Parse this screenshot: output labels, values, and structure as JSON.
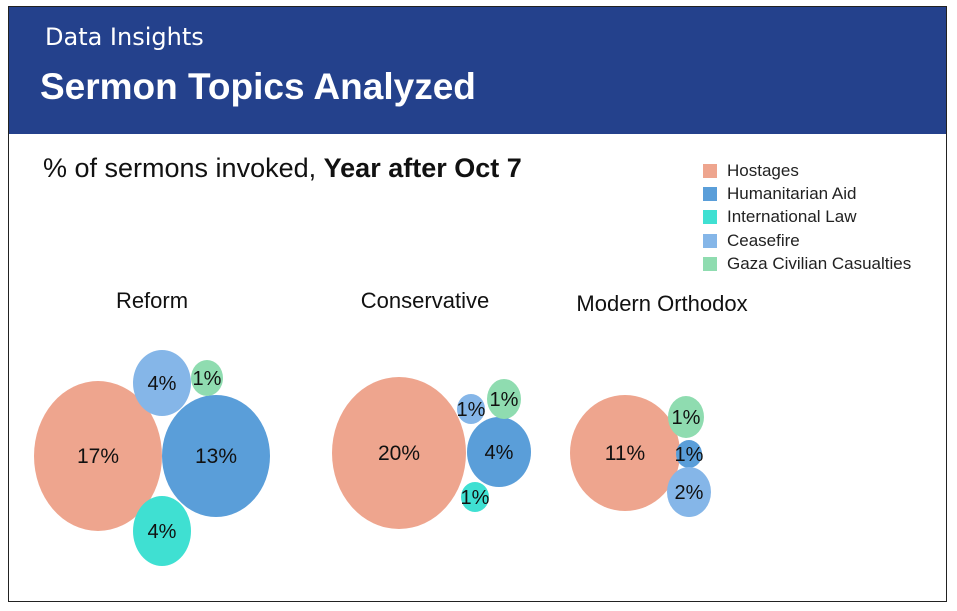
{
  "header": {
    "kicker": "Data Insights",
    "title": "Sermon Topics Analyzed"
  },
  "subtitle": {
    "prefix": "% of sermons invoked, ",
    "emphasis": "Year after Oct 7"
  },
  "chart_data": {
    "type": "bubble",
    "title": "% of sermons invoked, Year after Oct 7",
    "unit": "%",
    "legend_position": "top-right",
    "series": [
      {
        "name": "Hostages",
        "color": "#eea58e"
      },
      {
        "name": "Humanitarian Aid",
        "color": "#5a9ed9"
      },
      {
        "name": "International Law",
        "color": "#3fe0d2"
      },
      {
        "name": "Ceasefire",
        "color": "#85b6e8"
      },
      {
        "name": "Gaza Civilian Casualties",
        "color": "#8fdcb0"
      }
    ],
    "groups": [
      {
        "name": "Reform",
        "values": [
          {
            "topic": "Hostages",
            "value": 17,
            "label": "17%"
          },
          {
            "topic": "Humanitarian Aid",
            "value": 13,
            "label": "13%"
          },
          {
            "topic": "International Law",
            "value": 4,
            "label": "4%"
          },
          {
            "topic": "Ceasefire",
            "value": 4,
            "label": "4%"
          },
          {
            "topic": "Gaza Civilian Casualties",
            "value": 1,
            "label": "1%"
          }
        ]
      },
      {
        "name": "Conservative",
        "values": [
          {
            "topic": "Hostages",
            "value": 20,
            "label": "20%"
          },
          {
            "topic": "Humanitarian Aid",
            "value": 4,
            "label": "4%"
          },
          {
            "topic": "International Law",
            "value": 1,
            "label": "1%"
          },
          {
            "topic": "Ceasefire",
            "value": 1,
            "label": "1%"
          },
          {
            "topic": "Gaza Civilian Casualties",
            "value": 1,
            "label": "1%"
          }
        ]
      },
      {
        "name": "Modern Orthodox",
        "values": [
          {
            "topic": "Hostages",
            "value": 11,
            "label": "11%"
          },
          {
            "topic": "Humanitarian Aid",
            "value": 1,
            "label": "1%"
          },
          {
            "topic": "Ceasefire",
            "value": 2,
            "label": "2%"
          },
          {
            "topic": "Gaza Civilian Casualties",
            "value": 1,
            "label": "1%"
          }
        ]
      }
    ]
  }
}
